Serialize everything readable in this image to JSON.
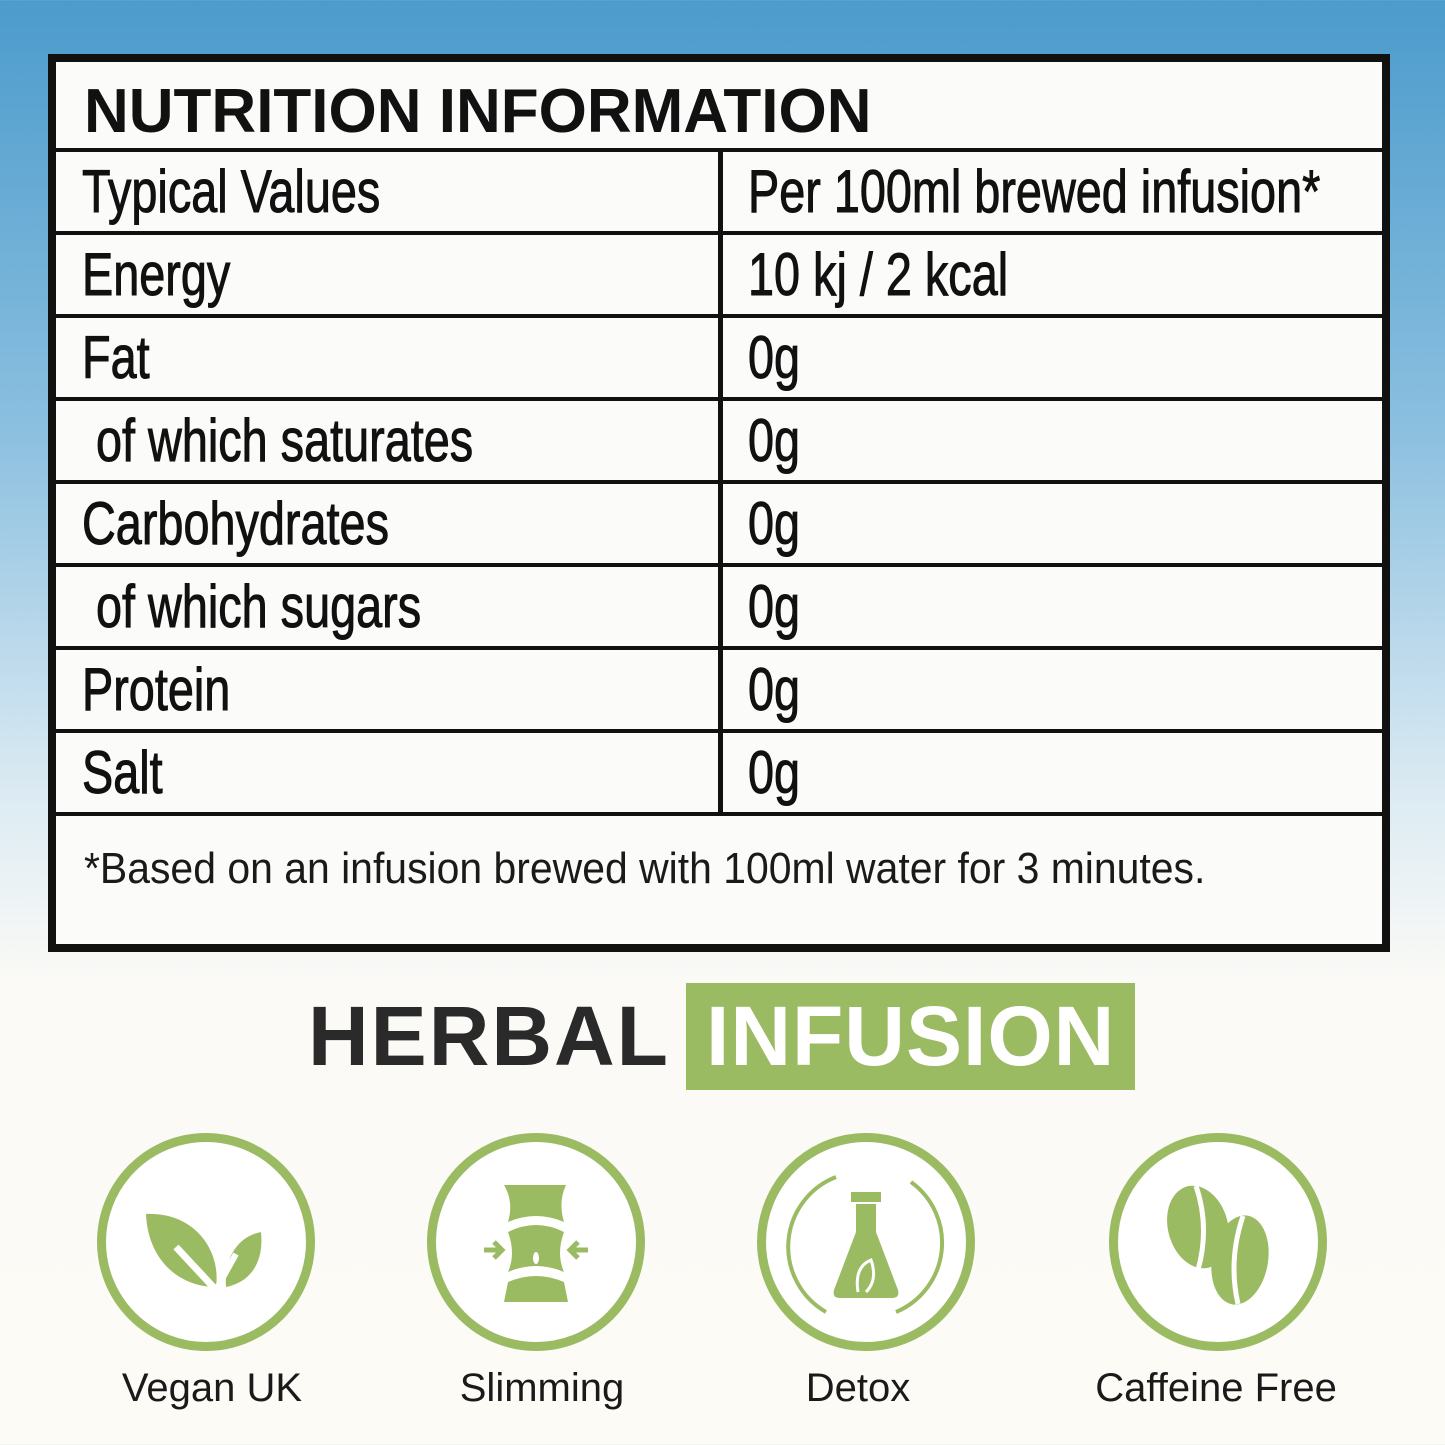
{
  "table": {
    "title": "NUTRITION INFORMATION",
    "header": {
      "label": "Typical Values",
      "value": "Per 100ml brewed infusion*"
    },
    "rows": [
      {
        "label": "Energy",
        "value": "10 kj / 2 kcal"
      },
      {
        "label": "Fat",
        "value": "0g"
      },
      {
        "label": " of which saturates",
        "value": "0g"
      },
      {
        "label": "Carbohydrates",
        "value": "0g"
      },
      {
        "label": " of which sugars",
        "value": "0g"
      },
      {
        "label": "Protein",
        "value": "0g"
      },
      {
        "label": "Salt",
        "value": "0g"
      }
    ],
    "footnote": "*Based on an infusion brewed with 100ml water for 3 minutes."
  },
  "brand": {
    "word1": "HERBAL",
    "word2": "INFUSION"
  },
  "badges": [
    {
      "label": "Vegan UK",
      "icon": "leaf-icon"
    },
    {
      "label": "Slimming",
      "icon": "waist-icon"
    },
    {
      "label": "Detox",
      "icon": "flask-cycle-icon"
    },
    {
      "label": "Caffeine Free",
      "icon": "coffee-bean-icon"
    }
  ],
  "colors": {
    "accent": "#9bbb63",
    "border": "#111111",
    "sky": "#4b9bcc"
  }
}
